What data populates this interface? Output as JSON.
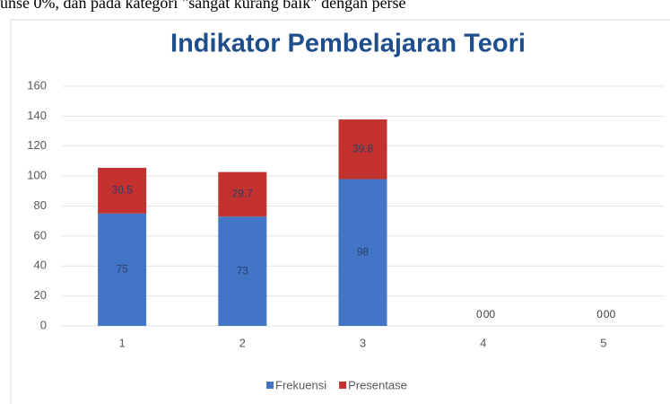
{
  "document_text": "unse 0%, dan pada kategori \"sangat kurang baik\" dengan perse",
  "chart_data": {
    "type": "stacked_bar",
    "title": "Indikator Pembelajaran Teori",
    "categories": [
      "1",
      "2",
      "3",
      "4",
      "5"
    ],
    "series": [
      {
        "name": "Frekuensi",
        "color": "#4275c6",
        "values": [
          75,
          73,
          98,
          0,
          0
        ],
        "value_labels": [
          "75",
          "73",
          "98",
          "0",
          "0"
        ]
      },
      {
        "name": "Presentase",
        "color": "#c4322f",
        "values": [
          30.5,
          29.7,
          39.8,
          0,
          0
        ],
        "value_labels": [
          "30.5",
          "29.7",
          "39.8",
          "00",
          "00"
        ]
      }
    ],
    "ylim": [
      0,
      160
    ],
    "yticks": [
      0,
      20,
      40,
      60,
      80,
      100,
      120,
      140,
      160
    ],
    "grid": true,
    "legend": "bottom"
  }
}
